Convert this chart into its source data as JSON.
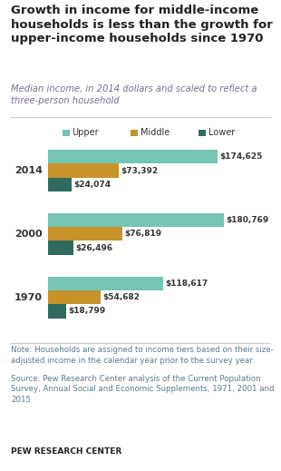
{
  "title": "Growth in income for middle-income\nhouseholds is less than the growth for\nupper-income households since 1970",
  "subtitle": "Median income, in 2014 dollars and scaled to reflect a\nthree-person household",
  "years": [
    "2014",
    "2000",
    "1970"
  ],
  "upper": [
    174625,
    180769,
    118617
  ],
  "middle": [
    73392,
    76819,
    54682
  ],
  "lower": [
    24074,
    26496,
    18799
  ],
  "upper_color": "#74c5b3",
  "middle_color": "#c9922a",
  "lower_color": "#2e6b5e",
  "title_color": "#222222",
  "subtitle_color": "#7b6e8d",
  "note_color": "#5a7a8a",
  "source_color": "#5a7a8a",
  "pew_color": "#222222",
  "note_text": "Note: Households are assigned to income tiers based on their size-\nadjusted income in the calendar year prior to the survey year.",
  "source_text": "Source: Pew Research Center analysis of the Current Population\nSurvey, Annual Social and Economic Supplements, 1971, 2001 and\n2015",
  "pew_text": "PEW RESEARCH CENTER",
  "max_val": 185000,
  "background_color": "#ffffff"
}
